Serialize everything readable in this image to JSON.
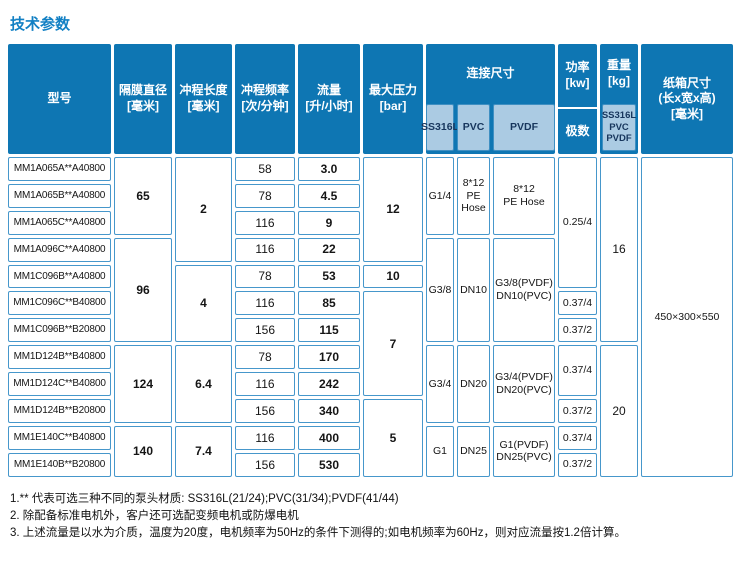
{
  "title": "技术参数",
  "colors": {
    "header_bg": "#0e76b3",
    "subheader_bg": "#abcbe3",
    "cell_border": "#4697cb",
    "title_text": "#1280c4"
  },
  "header": {
    "model": "型号",
    "diaphragm": {
      "label": "隔膜直径",
      "unit": "[毫米]"
    },
    "stroke": {
      "label": "冲程长度",
      "unit": "[毫米]"
    },
    "frequency": {
      "label": "冲程频率",
      "unit": "[次/分钟]"
    },
    "flow": {
      "label": "流量",
      "unit": "[升/小时]"
    },
    "pressure": {
      "label": "最大压力",
      "unit": "[bar]"
    },
    "connection": {
      "label": "连接尺寸",
      "sub": [
        "SS316L",
        "PVC",
        "PVDF"
      ]
    },
    "power": {
      "label": "功率",
      "unit": "[kw]",
      "sub": "极数"
    },
    "weight": {
      "label": "重量",
      "unit": "[kg]",
      "sub": "SS316L\nPVC\nPVDF"
    },
    "carton": {
      "label": "纸箱尺寸",
      "dims": "(长x宽x高)",
      "unit": "[毫米]"
    }
  },
  "table": {
    "models": [
      "MM1A065A**A40800",
      "MM1A065B**A40800",
      "MM1A065C**A40800",
      "MM1A096C**A40800",
      "MM1C096B**A40800",
      "MM1C096C**B40800",
      "MM1C096B**B20800",
      "MM1D124B**B40800",
      "MM1D124C**B40800",
      "MM1D124B**B20800",
      "MM1E140C**B40800",
      "MM1E140B**B20800"
    ],
    "diameters": [
      "65",
      "96",
      "124",
      "140"
    ],
    "strokes": [
      "2",
      "4",
      "6.4",
      "7.4"
    ],
    "frequencies": [
      "58",
      "78",
      "116",
      "116",
      "78",
      "116",
      "156",
      "78",
      "116",
      "156",
      "116",
      "156"
    ],
    "flows": [
      "3.0",
      "4.5",
      "9",
      "22",
      "53",
      "85",
      "115",
      "170",
      "242",
      "340",
      "400",
      "530"
    ],
    "pressures": [
      "12",
      "10",
      "7",
      "5"
    ],
    "connections": [
      {
        "ss316l": "G1/4",
        "pvc": "8*12 PE Hose",
        "pvdf": "8*12\nPE Hose"
      },
      {
        "ss316l": "G3/8",
        "pvc": "DN10",
        "pvdf": "G3/8(PVDF)\nDN10(PVC)"
      },
      {
        "ss316l": "G3/4",
        "pvc": "DN20",
        "pvdf": "G3/4(PVDF)\nDN20(PVC)"
      },
      {
        "ss316l": "G1",
        "pvc": "DN25",
        "pvdf": "G1(PVDF)\nDN25(PVC)"
      }
    ],
    "powers": [
      "0.25/4",
      "0.37/4",
      "0.37/2",
      "0.37/4",
      "0.37/2",
      "0.37/4",
      "0.37/2"
    ],
    "weights": [
      "16",
      "20"
    ],
    "carton": "450×300×550"
  },
  "footnotes": [
    "1.** 代表可选三种不同的泵头材质: SS316L(21/24);PVC(31/34);PVDF(41/44)",
    "2. 除配备标准电机外，客户还可选配变频电机或防爆电机",
    "3. 上述流量是以水为介质，温度为20度，电机频率为50Hz的条件下测得的;如电机频率为60Hz，则对应流量按1.2倍计算。"
  ]
}
